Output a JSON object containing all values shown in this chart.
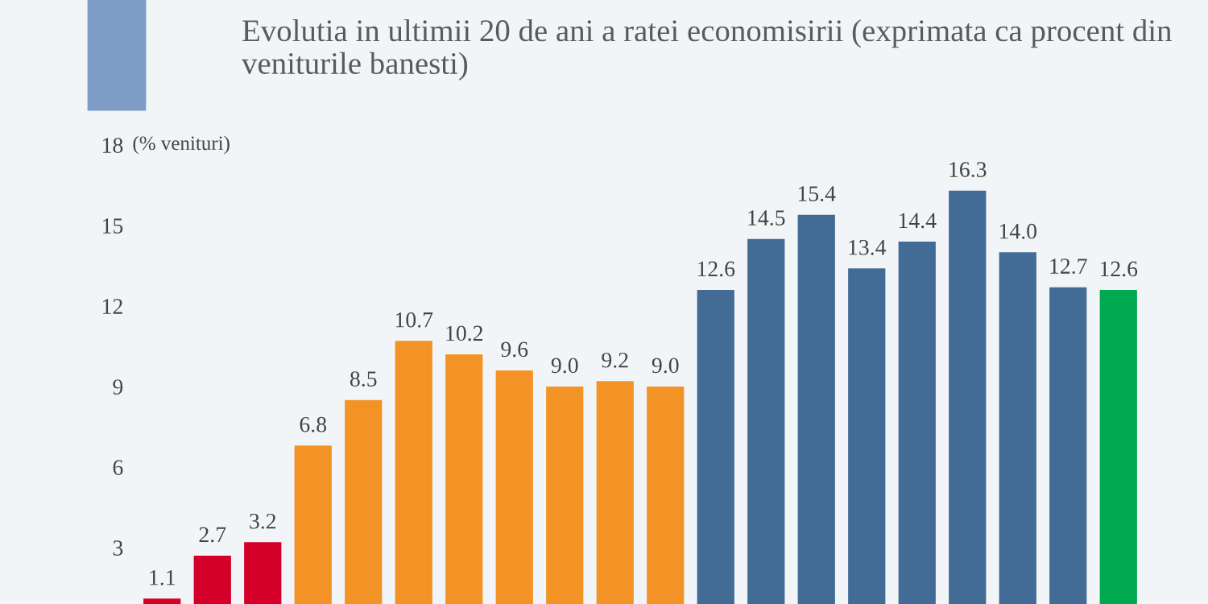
{
  "chart_data": {
    "type": "bar",
    "title": "Evolutia in ultimii 20 de ani a ratei economisirii (exprimata ca procent din veniturile banesti)",
    "categories": [
      null,
      null,
      null,
      null,
      null,
      null,
      null,
      null,
      null,
      null,
      null,
      null,
      null,
      null,
      null,
      null,
      null,
      null,
      null,
      null
    ],
    "values": [
      1.1,
      2.7,
      3.2,
      6.8,
      8.5,
      10.7,
      10.2,
      9.6,
      9.0,
      9.2,
      9.0,
      12.6,
      14.5,
      15.4,
      13.4,
      14.4,
      16.3,
      14.0,
      12.7,
      12.6
    ],
    "colors": [
      "#d4002a",
      "#d4002a",
      "#d4002a",
      "#f39325",
      "#f39325",
      "#f39325",
      "#f39325",
      "#f39325",
      "#f39325",
      "#f39325",
      "#f39325",
      "#426b96",
      "#426b96",
      "#426b96",
      "#426b96",
      "#426b96",
      "#426b96",
      "#426b96",
      "#426b96",
      "#00a84f"
    ],
    "value_labels": [
      "1.1",
      "2.7",
      "3.2",
      "6.8",
      "8.5",
      "10.7",
      "10.2",
      "9.6",
      "9.0",
      "9.2",
      "9.0",
      "12.6",
      "14.5",
      "15.4",
      "13.4",
      "14.4",
      "16.3",
      "14.0",
      "12.7",
      "12.6"
    ],
    "ylim": [
      0.9,
      18
    ],
    "yticks": [
      3,
      6,
      9,
      12,
      15,
      18
    ],
    "ylabel": "(% venituri)",
    "grid": false
  }
}
